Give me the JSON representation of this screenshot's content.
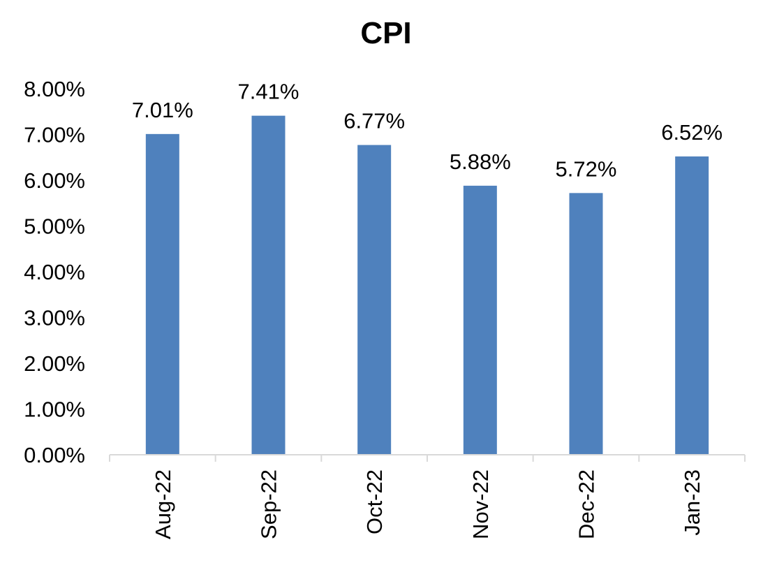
{
  "chart_data": {
    "type": "bar",
    "title": "CPI",
    "xlabel": "",
    "ylabel": "",
    "categories": [
      "Aug-22",
      "Sep-22",
      "Oct-22",
      "Nov-22",
      "Dec-22",
      "Jan-23"
    ],
    "series": [
      {
        "values": [
          7.01,
          7.41,
          6.77,
          5.88,
          5.72,
          6.52
        ],
        "data_labels": [
          "7.01%",
          "7.41%",
          "6.77%",
          "5.88%",
          "5.72%",
          "6.52%"
        ],
        "color": "#4F81BD"
      }
    ],
    "ylim": [
      0,
      8
    ],
    "y_ticks": [
      {
        "value": 0,
        "label": "0.00%"
      },
      {
        "value": 1,
        "label": "1.00%"
      },
      {
        "value": 2,
        "label": "2.00%"
      },
      {
        "value": 3,
        "label": "3.00%"
      },
      {
        "value": 4,
        "label": "4.00%"
      },
      {
        "value": 5,
        "label": "5.00%"
      },
      {
        "value": 6,
        "label": "6.00%"
      },
      {
        "value": 7,
        "label": "7.00%"
      },
      {
        "value": 8,
        "label": "8.00%"
      }
    ],
    "grid": false,
    "legend": "none",
    "x_tick_rotation": "vertical",
    "axis_color": "#D9D9D9"
  }
}
